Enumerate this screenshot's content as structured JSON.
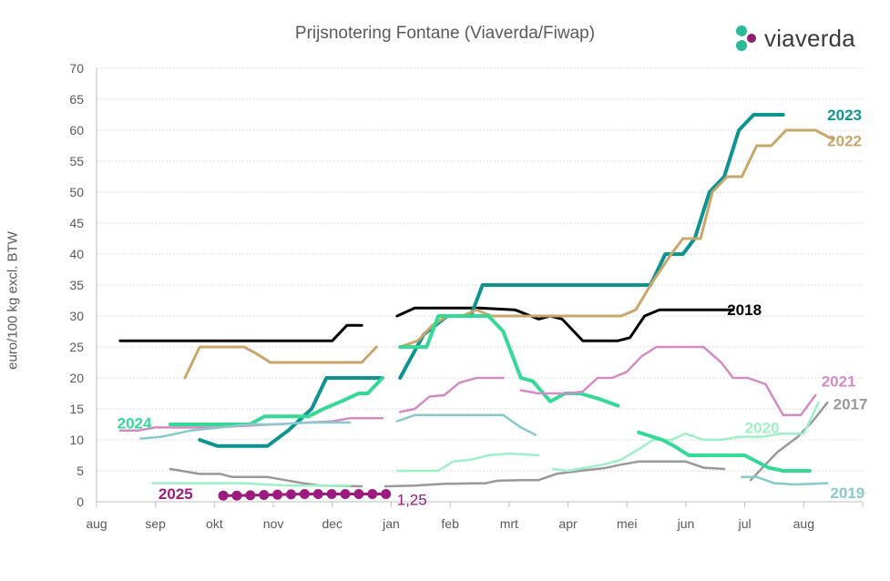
{
  "logo": {
    "text": "viaverda",
    "icon": "viaverda-logo-icon",
    "colors": [
      "#2bb99a",
      "#8e1f6e"
    ]
  },
  "chart_data": {
    "type": "line",
    "title": "Prijsnotering Fontane (Viaverda/Fiwap)",
    "xlabel": "",
    "ylabel": "euro/100 kg excl. BTW",
    "ylim": [
      0,
      70
    ],
    "yticks": [
      0,
      5,
      10,
      15,
      20,
      25,
      30,
      35,
      40,
      45,
      50,
      55,
      60,
      65,
      70
    ],
    "xlim": [
      0,
      13
    ],
    "xtick_labels": [
      "aug",
      "sep",
      "okt",
      "nov",
      "dec",
      "jan",
      "feb",
      "mrt",
      "apr",
      "mei",
      "jun",
      "jul",
      "aug"
    ],
    "grid": "horizontal-dotted",
    "x_unit_note": "x in months from start of august",
    "series": [
      {
        "name": "2018",
        "color": "#000000",
        "width": 3,
        "label": {
          "text": "2018",
          "at": [
            10.7,
            31
          ]
        },
        "segments": [
          [
            [
              0.4,
              26
            ],
            [
              4.0,
              26
            ],
            [
              4.25,
              28.5
            ],
            [
              4.5,
              28.5
            ]
          ],
          [
            [
              5.1,
              30
            ],
            [
              5.4,
              31.3
            ],
            [
              6.5,
              31.3
            ],
            [
              7.1,
              31
            ],
            [
              7.5,
              29.5
            ],
            [
              7.7,
              30
            ],
            [
              7.9,
              29.5
            ],
            [
              8.25,
              26
            ],
            [
              8.85,
              26
            ],
            [
              9.05,
              26.5
            ],
            [
              9.3,
              30
            ],
            [
              9.55,
              31
            ],
            [
              10.8,
              31
            ]
          ]
        ]
      },
      {
        "name": "2023",
        "color": "#0e9490",
        "width": 4,
        "label": {
          "text": "2023",
          "at": [
            12.4,
            62.5
          ]
        },
        "segments": [
          [
            [
              1.75,
              10
            ],
            [
              2.05,
              9
            ],
            [
              2.9,
              9
            ],
            [
              3.25,
              11.5
            ],
            [
              3.65,
              15
            ],
            [
              3.9,
              20
            ],
            [
              4.85,
              20
            ]
          ],
          [
            [
              5.15,
              20
            ],
            [
              5.55,
              27
            ],
            [
              5.95,
              30
            ],
            [
              6.35,
              30
            ],
            [
              6.55,
              35
            ],
            [
              9.4,
              35
            ],
            [
              9.65,
              40
            ],
            [
              9.95,
              40
            ],
            [
              10.15,
              42.5
            ],
            [
              10.4,
              50
            ],
            [
              10.65,
              52.5
            ],
            [
              10.9,
              60
            ],
            [
              11.15,
              62.5
            ],
            [
              11.65,
              62.5
            ]
          ]
        ]
      },
      {
        "name": "2022",
        "color": "#c9a66b",
        "width": 3,
        "label": {
          "text": "2022",
          "at": [
            12.4,
            58.3
          ]
        },
        "segments": [
          [
            [
              1.5,
              20
            ],
            [
              1.75,
              25
            ],
            [
              2.5,
              25
            ],
            [
              2.7,
              24
            ],
            [
              2.95,
              22.5
            ],
            [
              4.5,
              22.5
            ],
            [
              4.75,
              25
            ]
          ],
          [
            [
              5.15,
              25
            ],
            [
              5.45,
              26
            ],
            [
              5.7,
              28.5
            ],
            [
              5.95,
              30
            ],
            [
              6.2,
              30
            ],
            [
              6.45,
              31
            ],
            [
              6.7,
              30
            ],
            [
              8.9,
              30
            ],
            [
              9.15,
              31
            ],
            [
              9.4,
              35
            ],
            [
              9.75,
              40
            ],
            [
              9.95,
              42.5
            ],
            [
              10.25,
              42.5
            ],
            [
              10.45,
              50
            ],
            [
              10.7,
              52.5
            ],
            [
              10.95,
              52.5
            ],
            [
              11.2,
              57.5
            ],
            [
              11.45,
              57.5
            ],
            [
              11.7,
              60
            ],
            [
              12.2,
              60
            ],
            [
              12.5,
              58.5
            ]
          ]
        ]
      },
      {
        "name": "2024",
        "color": "#34d996",
        "width": 4,
        "label": {
          "text": "2024",
          "at": [
            0.35,
            12.7
          ]
        },
        "segments": [
          [
            [
              1.25,
              12.5
            ],
            [
              2.6,
              12.5
            ],
            [
              2.85,
              13.8
            ],
            [
              3.6,
              13.8
            ],
            [
              3.85,
              15
            ],
            [
              4.15,
              16.2
            ],
            [
              4.45,
              17.5
            ],
            [
              4.6,
              17.5
            ],
            [
              4.85,
              20
            ]
          ],
          [
            [
              5.15,
              25
            ],
            [
              5.6,
              25
            ],
            [
              5.8,
              30
            ],
            [
              6.45,
              30
            ],
            [
              6.65,
              30
            ],
            [
              6.9,
              27.5
            ],
            [
              7.2,
              20
            ],
            [
              7.4,
              19.5
            ],
            [
              7.7,
              16.2
            ],
            [
              7.95,
              17.5
            ],
            [
              8.2,
              17.5
            ],
            [
              8.5,
              16.7
            ],
            [
              8.85,
              15.5
            ]
          ]
        ]
      },
      {
        "name": "2025",
        "color": "#9b1b7e",
        "width": 3,
        "markers": true,
        "label": {
          "text": "2025",
          "at": [
            1.05,
            1.3
          ]
        },
        "end_value_label": "1,25",
        "segments": [
          [
            [
              2.15,
              1.0
            ],
            [
              2.38,
              1.0
            ],
            [
              2.61,
              1.05
            ],
            [
              2.84,
              1.1
            ],
            [
              3.07,
              1.15
            ],
            [
              3.3,
              1.2
            ],
            [
              3.53,
              1.25
            ],
            [
              3.76,
              1.25
            ],
            [
              3.99,
              1.25
            ],
            [
              4.22,
              1.25
            ],
            [
              4.45,
              1.25
            ],
            [
              4.68,
              1.25
            ],
            [
              4.91,
              1.25
            ]
          ]
        ]
      },
      {
        "name": "2021",
        "color": "#d38bc6",
        "width": 2.5,
        "label": {
          "text": "2021",
          "at": [
            12.3,
            19.5
          ]
        },
        "segments": [
          [
            [
              0.4,
              11.5
            ],
            [
              0.7,
              11.5
            ],
            [
              1.0,
              12
            ],
            [
              2.0,
              12
            ],
            [
              3.0,
              12.5
            ],
            [
              3.6,
              12.8
            ],
            [
              4.0,
              13
            ],
            [
              4.3,
              13.5
            ],
            [
              4.85,
              13.5
            ]
          ],
          [
            [
              5.15,
              14.5
            ],
            [
              5.4,
              15
            ],
            [
              5.65,
              17
            ],
            [
              5.9,
              17.2
            ],
            [
              6.15,
              19.2
            ],
            [
              6.45,
              20
            ],
            [
              6.9,
              20
            ]
          ],
          [
            [
              7.2,
              18
            ],
            [
              7.5,
              17.5
            ],
            [
              8.0,
              17.5
            ],
            [
              8.25,
              17.8
            ],
            [
              8.5,
              20
            ],
            [
              8.75,
              20
            ],
            [
              9.0,
              21
            ],
            [
              9.25,
              23.5
            ],
            [
              9.5,
              25
            ],
            [
              10.3,
              25
            ],
            [
              10.6,
              22.5
            ],
            [
              10.8,
              20
            ],
            [
              11.05,
              20
            ],
            [
              11.35,
              19
            ],
            [
              11.65,
              14
            ],
            [
              11.95,
              14
            ],
            [
              12.2,
              17.2
            ]
          ]
        ]
      },
      {
        "name": "2017",
        "color": "#999999",
        "width": 2.5,
        "label": {
          "text": "2017",
          "at": [
            12.5,
            15.8
          ]
        },
        "segments": [
          [
            [
              1.25,
              5.3
            ],
            [
              1.75,
              4.5
            ],
            [
              2.1,
              4.5
            ],
            [
              2.3,
              4
            ],
            [
              2.9,
              4
            ],
            [
              3.2,
              3.5
            ],
            [
              3.5,
              3
            ],
            [
              3.8,
              2.6
            ],
            [
              4.5,
              2.5
            ]
          ],
          [
            [
              4.9,
              2.5
            ],
            [
              5.4,
              2.6
            ],
            [
              5.9,
              2.9
            ],
            [
              6.6,
              3
            ],
            [
              6.8,
              3.4
            ],
            [
              7.2,
              3.5
            ],
            [
              7.5,
              3.5
            ],
            [
              7.8,
              4.5
            ],
            [
              8.2,
              5
            ],
            [
              8.6,
              5.4
            ],
            [
              8.9,
              6
            ],
            [
              9.2,
              6.5
            ],
            [
              10.0,
              6.5
            ],
            [
              10.3,
              5.5
            ],
            [
              10.65,
              5.3
            ]
          ]
        ]
      },
      {
        "name": "2017b",
        "color": "#999999",
        "width": 2.5,
        "segments": [
          [
            [
              11.1,
              3.5
            ],
            [
              11.3,
              5.5
            ],
            [
              11.55,
              8
            ],
            [
              11.9,
              10.5
            ],
            [
              12.15,
              13
            ],
            [
              12.4,
              16
            ]
          ]
        ]
      },
      {
        "name": "2019",
        "color": "#88c9cc",
        "width": 2.5,
        "label": {
          "text": "2019",
          "at": [
            12.45,
            1.5
          ]
        },
        "segments": [
          [
            [
              0.75,
              10.2
            ],
            [
              1.1,
              10.5
            ],
            [
              1.6,
              11.5
            ],
            [
              2.1,
              12
            ],
            [
              2.6,
              12.5
            ],
            [
              3.1,
              12.5
            ],
            [
              3.5,
              12.8
            ],
            [
              4.3,
              12.8
            ]
          ],
          [
            [
              5.1,
              13
            ],
            [
              5.4,
              14
            ],
            [
              6.9,
              14
            ],
            [
              7.2,
              12
            ],
            [
              7.45,
              10.8
            ]
          ],
          [
            [
              10.95,
              4
            ],
            [
              11.2,
              4
            ],
            [
              11.5,
              3
            ],
            [
              11.85,
              2.8
            ],
            [
              12.4,
              3
            ]
          ]
        ]
      },
      {
        "name": "2020",
        "color": "#9ef0c6",
        "width": 2.5,
        "label": {
          "text": "2020",
          "at": [
            11.0,
            12
          ]
        },
        "segments": [
          [
            [
              0.95,
              3
            ],
            [
              2.1,
              3
            ],
            [
              2.5,
              3
            ],
            [
              2.85,
              2.8
            ],
            [
              3.3,
              2.6
            ],
            [
              4.3,
              2.6
            ]
          ],
          [
            [
              5.1,
              5
            ],
            [
              5.8,
              5
            ],
            [
              6.05,
              6.5
            ],
            [
              6.35,
              6.8
            ],
            [
              6.65,
              7.5
            ],
            [
              7.0,
              7.8
            ],
            [
              7.5,
              7.5
            ]
          ],
          [
            [
              7.75,
              5.3
            ],
            [
              8.0,
              5
            ],
            [
              8.3,
              5.5
            ],
            [
              8.6,
              6
            ],
            [
              8.9,
              6.8
            ],
            [
              9.2,
              8.5
            ],
            [
              9.45,
              10
            ],
            [
              9.75,
              10
            ],
            [
              10.0,
              11
            ],
            [
              10.3,
              10
            ],
            [
              10.6,
              10
            ],
            [
              10.9,
              10.5
            ],
            [
              11.3,
              10.5
            ],
            [
              11.6,
              11
            ],
            [
              12.0,
              11
            ],
            [
              12.25,
              16
            ]
          ]
        ]
      },
      {
        "name": "2024b",
        "color": "#34d996",
        "width": 4,
        "segments": [
          [
            [
              9.2,
              11.2
            ],
            [
              9.6,
              10
            ],
            [
              9.8,
              9
            ],
            [
              10.05,
              7.5
            ],
            [
              11.0,
              7.5
            ],
            [
              11.4,
              5.5
            ],
            [
              11.65,
              5
            ],
            [
              12.1,
              5
            ]
          ]
        ]
      }
    ]
  }
}
